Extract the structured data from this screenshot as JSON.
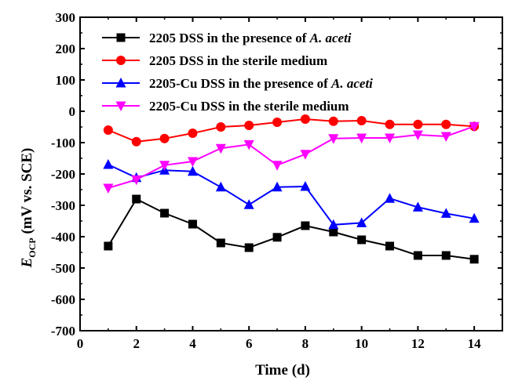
{
  "chart_data": {
    "type": "line",
    "xlabel": "Time (d)",
    "ylabel": "E",
    "ylabel_sub": "OCP",
    "ylabel_rest": " (mV  vs. SCE)",
    "xlim": [
      0,
      15
    ],
    "ylim": [
      -700,
      300
    ],
    "xticks": [
      0,
      2,
      4,
      6,
      8,
      10,
      12,
      14
    ],
    "yticks": [
      300,
      200,
      100,
      0,
      -100,
      -200,
      -300,
      -400,
      -500,
      -600,
      -700
    ],
    "grid": false,
    "legend_position": "top-right",
    "x": [
      1,
      2,
      3,
      4,
      5,
      6,
      7,
      8,
      9,
      10,
      11,
      12,
      13,
      14
    ],
    "series": [
      {
        "name": "2205 DSS in the presence of ",
        "name_italic": "A. aceti",
        "color": "#000000",
        "marker": "square",
        "values": [
          -430,
          -280,
          -325,
          -360,
          -420,
          -435,
          -402,
          -365,
          -385,
          -410,
          -430,
          -460,
          -460,
          -472
        ]
      },
      {
        "name": "2205 DSS in the sterile medium",
        "name_italic": "",
        "color": "#ff0000",
        "marker": "circle",
        "values": [
          -60,
          -97,
          -87,
          -70,
          -50,
          -45,
          -35,
          -25,
          -32,
          -30,
          -42,
          -42,
          -42,
          -48
        ]
      },
      {
        "name": "2205-Cu DSS in the presence of ",
        "name_italic": "A. aceti",
        "color": "#0000ff",
        "marker": "triangle-up",
        "values": [
          -170,
          -212,
          -188,
          -192,
          -242,
          -298,
          -242,
          -240,
          -362,
          -356,
          -278,
          -306,
          -326,
          -342
        ]
      },
      {
        "name": "2205-Cu DSS in the sterile medium",
        "name_italic": "",
        "color": "#ff00ff",
        "marker": "triangle-down",
        "values": [
          -245,
          -218,
          -172,
          -160,
          -118,
          -106,
          -172,
          -137,
          -87,
          -85,
          -85,
          -75,
          -80,
          -48
        ]
      }
    ]
  }
}
